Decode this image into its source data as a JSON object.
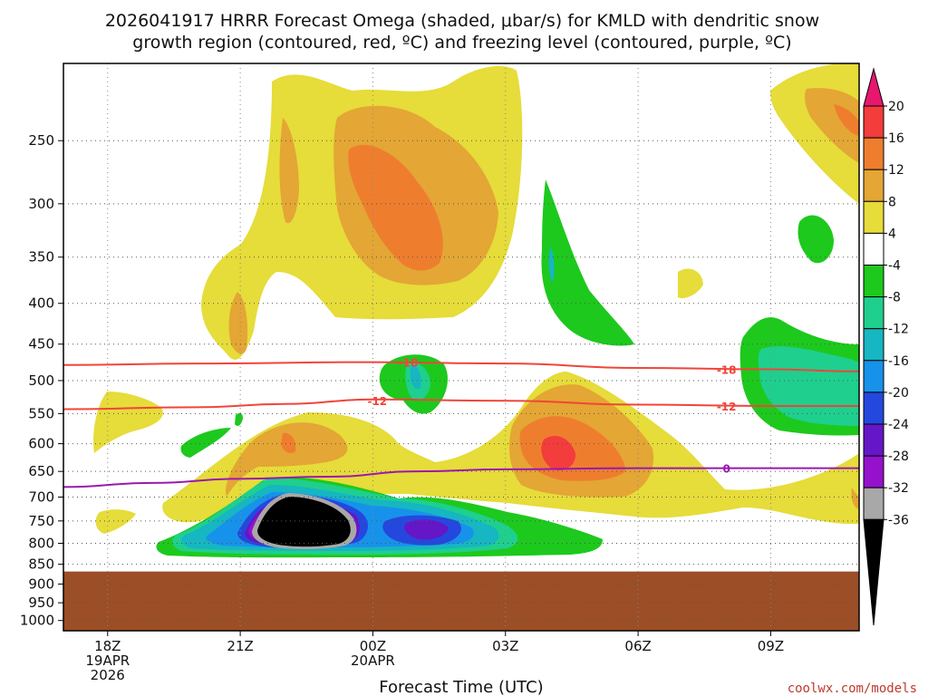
{
  "chart_data": {
    "type": "heatmap",
    "title_line1": "2026041917 HRRR Forecast Omega (shaded, μbar/s) for KMLD with dendritic snow",
    "title_line2": "growth region (contoured, red, ºC) and freezing level (contoured, purple, ºC)",
    "xlabel": "Forecast Time (UTC)",
    "ylabel": "",
    "x_ticks": [
      {
        "hour": 0,
        "line1": "18Z",
        "line2": "19APR",
        "line3": "2026"
      },
      {
        "hour": 3,
        "line1": "21Z",
        "line2": "",
        "line3": ""
      },
      {
        "hour": 6,
        "line1": "00Z",
        "line2": "20APR",
        "line3": ""
      },
      {
        "hour": 9,
        "line1": "03Z",
        "line2": "",
        "line3": ""
      },
      {
        "hour": 12,
        "line1": "06Z",
        "line2": "",
        "line3": ""
      },
      {
        "hour": 15,
        "line1": "09Z",
        "line2": "",
        "line3": ""
      }
    ],
    "xlim_hours": [
      -1,
      17
    ],
    "y_ticks": [
      "250",
      "300",
      "350",
      "400",
      "450",
      "500",
      "550",
      "600",
      "650",
      "700",
      "750",
      "800",
      "850",
      "900",
      "950",
      "1000"
    ],
    "y_tick_values": [
      250,
      300,
      350,
      400,
      450,
      500,
      550,
      600,
      650,
      700,
      750,
      800,
      850,
      900,
      950,
      1000
    ],
    "ylim_hpa": [
      200,
      1030
    ],
    "surface_pressure_hpa": 868,
    "colorbar": {
      "levels": [
        "20",
        "16",
        "12",
        "8",
        "4",
        "-4",
        "-8",
        "-12",
        "-16",
        "-20",
        "-24",
        "-28",
        "-32",
        "-36"
      ],
      "colors": [
        "#e8176e",
        "#f33c3c",
        "#ee7e2e",
        "#e4a634",
        "#e6dc3a",
        "#ffffff",
        "#1dc91d",
        "#1fcf8e",
        "#16b6c2",
        "#1792ea",
        "#2448de",
        "#6516c6",
        "#9511cc",
        "#a8a8a8",
        "#000000"
      ]
    },
    "contours": [
      {
        "label": "-18",
        "color": "#f0453a",
        "points": [
          [
            -1,
            478
          ],
          [
            2,
            476
          ],
          [
            6,
            474
          ],
          [
            9,
            476
          ],
          [
            12,
            482
          ],
          [
            15,
            484
          ],
          [
            17,
            487
          ]
        ]
      },
      {
        "label": "-12",
        "color": "#f0453a",
        "points": [
          [
            -1,
            543
          ],
          [
            2,
            540
          ],
          [
            4,
            535
          ],
          [
            6,
            528
          ],
          [
            9,
            530
          ],
          [
            12,
            536
          ],
          [
            15,
            538
          ],
          [
            17,
            538
          ]
        ]
      },
      {
        "label": "0",
        "color": "#9a18b0",
        "points": [
          [
            -1,
            680
          ],
          [
            1,
            672
          ],
          [
            3,
            664
          ],
          [
            5,
            660
          ],
          [
            7,
            650
          ],
          [
            9,
            646
          ],
          [
            12,
            644
          ],
          [
            17,
            644
          ]
        ]
      }
    ],
    "contour_label_positions": [
      [
        6.8,
        474
      ],
      [
        6.1,
        530
      ],
      [
        14.0,
        484
      ],
      [
        14.0,
        538
      ],
      [
        14.0,
        644
      ]
    ],
    "brand": "coolwx.com/models"
  }
}
